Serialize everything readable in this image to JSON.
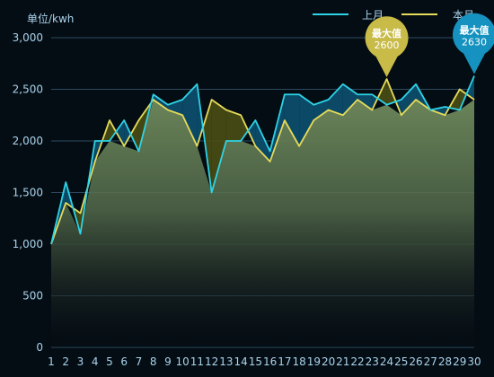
{
  "chart_data": {
    "type": "area",
    "unit_label": "单位/kwh",
    "x": [
      1,
      2,
      3,
      4,
      5,
      6,
      7,
      8,
      9,
      10,
      11,
      12,
      13,
      14,
      15,
      16,
      17,
      18,
      19,
      20,
      21,
      22,
      23,
      24,
      25,
      26,
      27,
      28,
      29,
      30
    ],
    "series": [
      {
        "name": "上月",
        "color": "#2ed3e6",
        "values": [
          1000,
          1600,
          1100,
          2000,
          2000,
          2200,
          1900,
          2450,
          2350,
          2400,
          2550,
          1500,
          2000,
          2000,
          2200,
          1900,
          2450,
          2450,
          2350,
          2400,
          2550,
          2450,
          2450,
          2350,
          2400,
          2550,
          2300,
          2330,
          2300,
          2630
        ]
      },
      {
        "name": "本月",
        "color": "#e6da5a",
        "values": [
          1000,
          1400,
          1300,
          1800,
          2200,
          1950,
          2200,
          2400,
          2300,
          2250,
          1950,
          2400,
          2300,
          2250,
          1950,
          1800,
          2200,
          1950,
          2200,
          2300,
          2250,
          2400,
          2300,
          2600,
          2250,
          2400,
          2300,
          2250,
          2500,
          2400
        ]
      }
    ],
    "ylim": [
      0,
      3000
    ],
    "yticks": [
      0,
      500,
      1000,
      1500,
      2000,
      2500,
      3000
    ],
    "ytick_labels": [
      "0",
      "500",
      "1,000",
      "1,500",
      "2,000",
      "2,500",
      "3,000"
    ],
    "xtick_labels": [
      "1",
      "2",
      "3",
      "4",
      "5",
      "6",
      "7",
      "8",
      "9",
      "10",
      "11",
      "12",
      "13",
      "14",
      "15",
      "16",
      "17",
      "18",
      "19",
      "20",
      "21",
      "22",
      "23",
      "24",
      "25",
      "26",
      "27",
      "28",
      "29",
      "30"
    ],
    "grid": true,
    "legend_position": "top-right",
    "annotations": [
      {
        "series": "本月",
        "x": 24,
        "y": 2600,
        "label": "最大值",
        "value_text": "2600",
        "color": "#c8bb48"
      },
      {
        "series": "上月",
        "x": 30,
        "y": 2630,
        "label": "最大值",
        "value_text": "2630",
        "color": "#1592bf"
      }
    ]
  }
}
